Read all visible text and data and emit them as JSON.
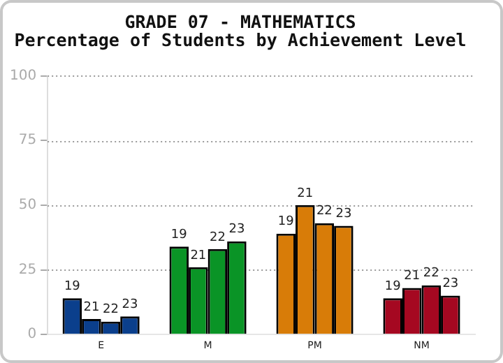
{
  "chart_data": {
    "type": "bar",
    "title": "GRADE 07 - MATHEMATICS",
    "subtitle": "Percentage of Students by Achievement Level",
    "categories": [
      "E",
      "M",
      "PM",
      "NM"
    ],
    "series": [
      {
        "name": "19",
        "colors": [
          "#0b3f8c",
          "#0a9426",
          "#d87c08",
          "#a50821"
        ],
        "values": [
          14,
          34,
          39,
          14
        ]
      },
      {
        "name": "21",
        "colors": [
          "#0b3f8c",
          "#0a9426",
          "#d87c08",
          "#a50821"
        ],
        "values": [
          6,
          26,
          50,
          18
        ]
      },
      {
        "name": "22",
        "colors": [
          "#0b3f8c",
          "#0a9426",
          "#d87c08",
          "#a50821"
        ],
        "values": [
          5,
          33,
          43,
          19
        ]
      },
      {
        "name": "23",
        "colors": [
          "#0b3f8c",
          "#0a9426",
          "#d87c08",
          "#a50821"
        ],
        "values": [
          7,
          36,
          42,
          15
        ]
      }
    ],
    "ylim": [
      0,
      100
    ],
    "yticks": [
      0,
      25,
      50,
      75,
      100
    ],
    "grid": "y",
    "legend": false
  }
}
